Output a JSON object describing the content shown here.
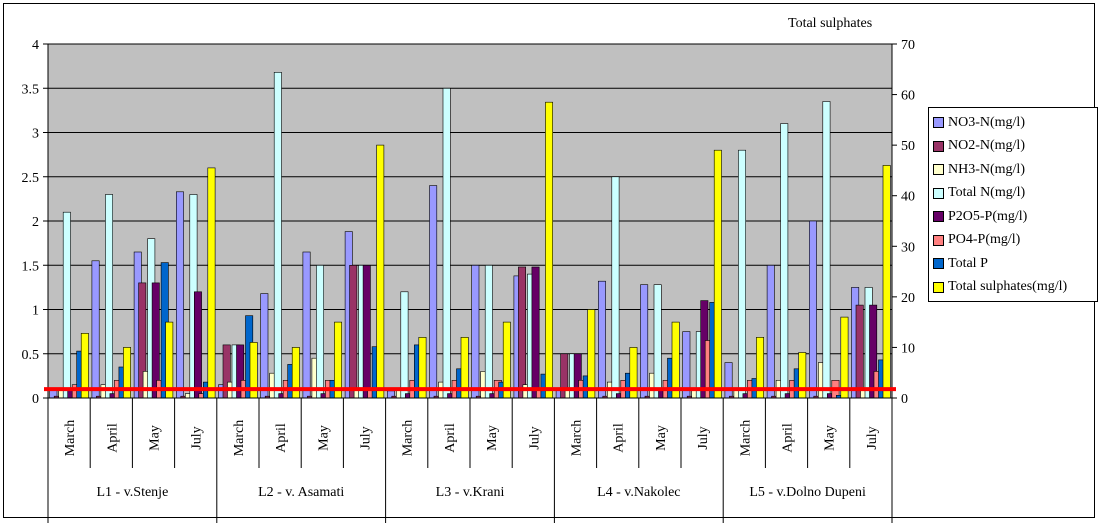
{
  "chart_data": {
    "type": "bar",
    "y2_title": "Total sulphates",
    "ylim": [
      0,
      4
    ],
    "y_ticks": [
      "0",
      "0.5",
      "1",
      "1.5",
      "2",
      "2.5",
      "3",
      "3.5",
      "4"
    ],
    "y2lim": [
      0,
      70
    ],
    "y2_ticks": [
      "0",
      "10",
      "20",
      "30",
      "40",
      "50",
      "60",
      "70"
    ],
    "background": "#c0c0c0",
    "grid": "horizontal",
    "legend_position": "right",
    "groups": [
      {
        "label": "L1 - v.Stenje",
        "months": [
          "March",
          "April",
          "May",
          "July"
        ]
      },
      {
        "label": "L2 - v. Asamati",
        "months": [
          "March",
          "April",
          "May",
          "July"
        ]
      },
      {
        "label": "L3 - v.Krani",
        "months": [
          "March",
          "April",
          "May",
          "July"
        ]
      },
      {
        "label": "L4 - v.Nakolec",
        "months": [
          "March",
          "April",
          "May",
          "July"
        ]
      },
      {
        "label": "L5 - v.Dolno Dupeni",
        "months": [
          "March",
          "April",
          "May",
          "July"
        ]
      }
    ],
    "series": [
      {
        "name": "NO3-N(mg/l)",
        "color": "#9999ff",
        "axis": "left",
        "values": [
          0.1,
          1.55,
          1.65,
          2.33,
          0.15,
          1.18,
          1.65,
          1.88,
          0.08,
          2.4,
          1.5,
          1.38,
          0.1,
          1.32,
          1.28,
          0.75,
          0.4,
          1.5,
          2.0,
          1.25
        ]
      },
      {
        "name": "NO2-N(mg/l)",
        "color": "#993366",
        "axis": "left",
        "values": [
          0.02,
          0.02,
          1.3,
          0.02,
          0.6,
          0.02,
          0.02,
          1.5,
          0.02,
          0.02,
          0.02,
          1.48,
          0.5,
          0.02,
          0.02,
          0.02,
          0.02,
          0.02,
          0.02,
          1.05
        ]
      },
      {
        "name": "NH3-N(mg/l)",
        "color": "#ffffcc",
        "axis": "left",
        "values": [
          0.1,
          0.15,
          0.3,
          0.05,
          0.18,
          0.28,
          0.45,
          0.1,
          0.1,
          0.18,
          0.3,
          0.15,
          0.1,
          0.18,
          0.28,
          0.1,
          0.1,
          0.2,
          0.4,
          0.1
        ]
      },
      {
        "name": "Total N(mg/l)",
        "color": "#ccffff",
        "axis": "left",
        "values": [
          2.1,
          2.3,
          1.8,
          2.3,
          0.6,
          3.68,
          1.5,
          1.5,
          1.2,
          3.5,
          1.5,
          1.4,
          0.5,
          2.5,
          1.28,
          0.75,
          2.8,
          3.1,
          3.35,
          1.25
        ]
      },
      {
        "name": "P2O5-P(mg/l)",
        "color": "#660066",
        "axis": "left",
        "values": [
          0.1,
          0.05,
          1.3,
          1.2,
          0.6,
          0.05,
          0.05,
          1.5,
          0.05,
          0.05,
          0.05,
          1.48,
          0.5,
          0.05,
          0.1,
          1.1,
          0.05,
          0.05,
          0.05,
          1.05
        ]
      },
      {
        "name": "PO4-P(mg/l)",
        "color": "#ff8080",
        "axis": "left",
        "values": [
          0.15,
          0.2,
          0.2,
          0.05,
          0.2,
          0.2,
          0.2,
          0.1,
          0.2,
          0.2,
          0.2,
          0.1,
          0.2,
          0.2,
          0.2,
          0.65,
          0.2,
          0.2,
          0.2,
          0.3
        ]
      },
      {
        "name": "Total P",
        "color": "#0066cc",
        "axis": "left",
        "values": [
          0.53,
          0.35,
          1.53,
          0.18,
          0.93,
          0.38,
          0.2,
          0.58,
          0.6,
          0.33,
          0.18,
          0.27,
          0.25,
          0.28,
          0.45,
          1.08,
          0.22,
          0.33,
          0.03,
          0.43
        ]
      },
      {
        "name": "Total sulphates(mg/l)",
        "color": "#ffff00",
        "axis": "right",
        "values": [
          12.8,
          10,
          15,
          45.5,
          11,
          10,
          15,
          50,
          12,
          12,
          15,
          58.5,
          17.5,
          10,
          15,
          49,
          12,
          9,
          16,
          46
        ]
      }
    ],
    "reference_line": {
      "color": "#ff0000",
      "value": 0.1,
      "axis": "left"
    }
  }
}
